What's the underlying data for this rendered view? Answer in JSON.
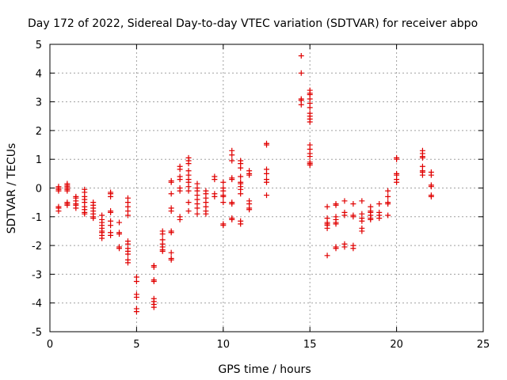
{
  "chart_data": {
    "type": "scatter",
    "title": "Day 172 of 2022, Sidereal Day-to-day VTEC variation (SDTVAR) for receiver abpo",
    "xlabel": "GPS time / hours",
    "ylabel": "SDTVAR / TECUs",
    "xlim": [
      0,
      25
    ],
    "ylim": [
      -5,
      5
    ],
    "xticks": [
      0,
      5,
      10,
      15,
      20,
      25
    ],
    "yticks": [
      -5,
      -4,
      -3,
      -2,
      -1,
      0,
      1,
      2,
      3,
      4,
      5
    ],
    "xtick_labels": [
      "0",
      "5",
      "10",
      "15",
      "20",
      "25"
    ],
    "ytick_labels": [
      "-5",
      "-4",
      "-3",
      "-2",
      "-1",
      "0",
      "1",
      "2",
      "3",
      "4",
      "5"
    ],
    "grid": true,
    "marker": "+",
    "color": "#e00000",
    "series": [
      {
        "name": "SDTVAR",
        "points": [
          [
            0.5,
            0.05
          ],
          [
            0.5,
            0.0
          ],
          [
            0.5,
            -0.05
          ],
          [
            0.5,
            -0.1
          ],
          [
            0.5,
            -0.65
          ],
          [
            0.5,
            -0.7
          ],
          [
            0.5,
            -0.8
          ],
          [
            1.0,
            0.15
          ],
          [
            1.0,
            0.1
          ],
          [
            1.0,
            0.05
          ],
          [
            1.0,
            0.0
          ],
          [
            1.0,
            -0.05
          ],
          [
            1.0,
            -0.1
          ],
          [
            1.0,
            -0.5
          ],
          [
            1.0,
            -0.55
          ],
          [
            1.0,
            -0.6
          ],
          [
            1.5,
            -0.3
          ],
          [
            1.5,
            -0.35
          ],
          [
            1.5,
            -0.45
          ],
          [
            1.5,
            -0.55
          ],
          [
            1.5,
            -0.6
          ],
          [
            1.5,
            -0.7
          ],
          [
            2.0,
            -0.05
          ],
          [
            2.0,
            -0.15
          ],
          [
            2.0,
            -0.3
          ],
          [
            2.0,
            -0.4
          ],
          [
            2.0,
            -0.5
          ],
          [
            2.0,
            -0.65
          ],
          [
            2.0,
            -0.75
          ],
          [
            2.0,
            -0.85
          ],
          [
            2.0,
            -0.9
          ],
          [
            2.5,
            -0.5
          ],
          [
            2.5,
            -0.6
          ],
          [
            2.5,
            -0.7
          ],
          [
            2.5,
            -0.8
          ],
          [
            2.5,
            -0.9
          ],
          [
            2.5,
            -1.0
          ],
          [
            2.5,
            -1.05
          ],
          [
            3.0,
            -0.95
          ],
          [
            3.0,
            -1.1
          ],
          [
            3.0,
            -1.2
          ],
          [
            3.0,
            -1.3
          ],
          [
            3.0,
            -1.4
          ],
          [
            3.0,
            -1.5
          ],
          [
            3.0,
            -1.55
          ],
          [
            3.0,
            -1.65
          ],
          [
            3.0,
            -1.75
          ],
          [
            3.5,
            -0.15
          ],
          [
            3.5,
            -0.2
          ],
          [
            3.5,
            -0.3
          ],
          [
            3.5,
            -0.8
          ],
          [
            3.5,
            -0.85
          ],
          [
            3.5,
            -1.15
          ],
          [
            3.5,
            -1.3
          ],
          [
            3.5,
            -1.55
          ],
          [
            3.5,
            -1.65
          ],
          [
            4.0,
            -1.2
          ],
          [
            4.0,
            -1.55
          ],
          [
            4.0,
            -1.6
          ],
          [
            4.0,
            -2.05
          ],
          [
            4.0,
            -2.1
          ],
          [
            4.5,
            -0.35
          ],
          [
            4.5,
            -0.5
          ],
          [
            4.5,
            -0.65
          ],
          [
            4.5,
            -0.8
          ],
          [
            4.5,
            -0.95
          ],
          [
            4.5,
            -1.85
          ],
          [
            4.5,
            -1.95
          ],
          [
            4.5,
            -2.1
          ],
          [
            4.5,
            -2.2
          ],
          [
            4.5,
            -2.3
          ],
          [
            4.5,
            -2.5
          ],
          [
            4.5,
            -2.6
          ],
          [
            5.0,
            -3.1
          ],
          [
            5.0,
            -3.25
          ],
          [
            5.0,
            -3.7
          ],
          [
            5.0,
            -3.8
          ],
          [
            5.0,
            -4.2
          ],
          [
            5.0,
            -4.3
          ],
          [
            6.0,
            -2.7
          ],
          [
            6.0,
            -2.75
          ],
          [
            6.0,
            -3.2
          ],
          [
            6.0,
            -3.25
          ],
          [
            6.0,
            -3.85
          ],
          [
            6.0,
            -3.95
          ],
          [
            6.0,
            -4.05
          ],
          [
            6.0,
            -4.15
          ],
          [
            6.5,
            -1.5
          ],
          [
            6.5,
            -1.6
          ],
          [
            6.5,
            -1.8
          ],
          [
            6.5,
            -1.95
          ],
          [
            6.5,
            -2.05
          ],
          [
            6.5,
            -2.15
          ],
          [
            6.5,
            -2.2
          ],
          [
            7.0,
            0.25
          ],
          [
            7.0,
            0.2
          ],
          [
            7.0,
            -0.2
          ],
          [
            7.0,
            -0.7
          ],
          [
            7.0,
            -0.8
          ],
          [
            7.0,
            -1.5
          ],
          [
            7.0,
            -1.55
          ],
          [
            7.0,
            -2.25
          ],
          [
            7.0,
            -2.45
          ],
          [
            7.0,
            -2.5
          ],
          [
            7.5,
            0.75
          ],
          [
            7.5,
            0.65
          ],
          [
            7.5,
            0.4
          ],
          [
            7.5,
            0.3
          ],
          [
            7.5,
            0.0
          ],
          [
            7.5,
            -0.1
          ],
          [
            7.5,
            -1.0
          ],
          [
            7.5,
            -1.1
          ],
          [
            8.0,
            1.05
          ],
          [
            8.0,
            0.95
          ],
          [
            8.0,
            0.85
          ],
          [
            8.0,
            0.6
          ],
          [
            8.0,
            0.45
          ],
          [
            8.0,
            0.3
          ],
          [
            8.0,
            0.2
          ],
          [
            8.0,
            0.05
          ],
          [
            8.0,
            -0.1
          ],
          [
            8.0,
            -0.5
          ],
          [
            8.0,
            -0.8
          ],
          [
            8.5,
            0.15
          ],
          [
            8.5,
            0.0
          ],
          [
            8.5,
            -0.1
          ],
          [
            8.5,
            -0.25
          ],
          [
            8.5,
            -0.4
          ],
          [
            8.5,
            -0.55
          ],
          [
            8.5,
            -0.7
          ],
          [
            8.5,
            -0.9
          ],
          [
            9.0,
            -0.1
          ],
          [
            9.0,
            -0.2
          ],
          [
            9.0,
            -0.35
          ],
          [
            9.0,
            -0.5
          ],
          [
            9.0,
            -0.65
          ],
          [
            9.0,
            -0.8
          ],
          [
            9.0,
            -0.9
          ],
          [
            9.5,
            0.4
          ],
          [
            9.5,
            0.3
          ],
          [
            9.5,
            -0.2
          ],
          [
            9.5,
            -0.3
          ],
          [
            10.0,
            0.2
          ],
          [
            10.0,
            0.0
          ],
          [
            10.0,
            -0.1
          ],
          [
            10.0,
            -0.25
          ],
          [
            10.0,
            -0.3
          ],
          [
            10.0,
            -0.5
          ],
          [
            10.0,
            -1.25
          ],
          [
            10.0,
            -1.3
          ],
          [
            10.5,
            1.3
          ],
          [
            10.5,
            1.15
          ],
          [
            10.5,
            0.95
          ],
          [
            10.5,
            0.35
          ],
          [
            10.5,
            0.3
          ],
          [
            10.5,
            -0.5
          ],
          [
            10.5,
            -0.55
          ],
          [
            10.5,
            -1.05
          ],
          [
            10.5,
            -1.1
          ],
          [
            11.0,
            0.95
          ],
          [
            11.0,
            0.85
          ],
          [
            11.0,
            0.7
          ],
          [
            11.0,
            0.4
          ],
          [
            11.0,
            0.2
          ],
          [
            11.0,
            0.15
          ],
          [
            11.0,
            0.05
          ],
          [
            11.0,
            -0.05
          ],
          [
            11.0,
            -0.2
          ],
          [
            11.0,
            -1.15
          ],
          [
            11.0,
            -1.25
          ],
          [
            11.5,
            0.6
          ],
          [
            11.5,
            0.5
          ],
          [
            11.5,
            0.45
          ],
          [
            11.5,
            -0.45
          ],
          [
            11.5,
            -0.55
          ],
          [
            11.5,
            -0.7
          ],
          [
            11.5,
            -0.75
          ],
          [
            12.5,
            1.55
          ],
          [
            12.5,
            1.5
          ],
          [
            12.5,
            0.65
          ],
          [
            12.5,
            0.5
          ],
          [
            12.5,
            0.3
          ],
          [
            12.5,
            0.2
          ],
          [
            12.5,
            -0.25
          ],
          [
            14.5,
            4.6
          ],
          [
            14.5,
            4.0
          ],
          [
            14.5,
            3.1
          ],
          [
            14.5,
            3.05
          ],
          [
            14.5,
            2.9
          ],
          [
            15.0,
            3.4
          ],
          [
            15.0,
            3.3
          ],
          [
            15.0,
            3.25
          ],
          [
            15.0,
            3.1
          ],
          [
            15.0,
            2.95
          ],
          [
            15.0,
            2.8
          ],
          [
            15.0,
            2.6
          ],
          [
            15.0,
            2.5
          ],
          [
            15.0,
            2.4
          ],
          [
            15.0,
            2.3
          ],
          [
            15.0,
            1.5
          ],
          [
            15.0,
            1.35
          ],
          [
            15.0,
            1.2
          ],
          [
            15.0,
            1.1
          ],
          [
            15.0,
            0.9
          ],
          [
            15.0,
            0.85
          ],
          [
            15.0,
            0.8
          ],
          [
            16.0,
            -0.65
          ],
          [
            16.0,
            -1.05
          ],
          [
            16.0,
            -1.2
          ],
          [
            16.0,
            -1.25
          ],
          [
            16.0,
            -1.3
          ],
          [
            16.0,
            -1.4
          ],
          [
            16.0,
            -2.35
          ],
          [
            16.5,
            -0.55
          ],
          [
            16.5,
            -0.6
          ],
          [
            16.5,
            -1.0
          ],
          [
            16.5,
            -1.1
          ],
          [
            16.5,
            -1.2
          ],
          [
            16.5,
            -1.25
          ],
          [
            16.5,
            -2.05
          ],
          [
            16.5,
            -2.1
          ],
          [
            17.0,
            -0.45
          ],
          [
            17.0,
            -0.85
          ],
          [
            17.0,
            -0.95
          ],
          [
            17.0,
            -1.95
          ],
          [
            17.0,
            -2.05
          ],
          [
            17.5,
            -0.55
          ],
          [
            17.5,
            -0.95
          ],
          [
            17.5,
            -1.0
          ],
          [
            17.5,
            -2.0
          ],
          [
            17.5,
            -2.1
          ],
          [
            18.0,
            -0.45
          ],
          [
            18.0,
            -0.9
          ],
          [
            18.0,
            -1.05
          ],
          [
            18.0,
            -1.15
          ],
          [
            18.0,
            -1.4
          ],
          [
            18.0,
            -1.5
          ],
          [
            18.5,
            -0.65
          ],
          [
            18.5,
            -0.8
          ],
          [
            18.5,
            -0.85
          ],
          [
            18.5,
            -0.95
          ],
          [
            18.5,
            -1.05
          ],
          [
            18.5,
            -1.1
          ],
          [
            19.0,
            -0.55
          ],
          [
            19.0,
            -0.85
          ],
          [
            19.0,
            -0.95
          ],
          [
            19.0,
            -1.05
          ],
          [
            19.5,
            -0.1
          ],
          [
            19.5,
            -0.3
          ],
          [
            19.5,
            -0.5
          ],
          [
            19.5,
            -0.55
          ],
          [
            19.5,
            -0.95
          ],
          [
            20.0,
            1.05
          ],
          [
            20.0,
            1.0
          ],
          [
            20.0,
            0.5
          ],
          [
            20.0,
            0.45
          ],
          [
            20.0,
            0.3
          ],
          [
            20.0,
            0.2
          ],
          [
            21.5,
            1.3
          ],
          [
            21.5,
            1.2
          ],
          [
            21.5,
            1.1
          ],
          [
            21.5,
            1.05
          ],
          [
            21.5,
            0.75
          ],
          [
            21.5,
            0.6
          ],
          [
            21.5,
            0.55
          ],
          [
            21.5,
            0.45
          ],
          [
            22.0,
            0.55
          ],
          [
            22.0,
            0.45
          ],
          [
            22.0,
            0.1
          ],
          [
            22.0,
            0.05
          ],
          [
            22.0,
            -0.25
          ],
          [
            22.0,
            -0.3
          ]
        ]
      }
    ]
  }
}
